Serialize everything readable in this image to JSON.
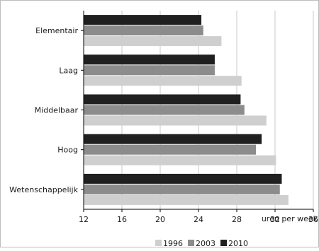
{
  "chart_data": {
    "type": "bar",
    "orientation": "horizontal",
    "categories": [
      "Elementair",
      "Laag",
      "Middelbaar",
      "Hoog",
      "Wetenschappelijk"
    ],
    "series": [
      {
        "name": "2010",
        "values": [
          24.3,
          25.7,
          28.4,
          30.6,
          32.7
        ],
        "color": "#202020"
      },
      {
        "name": "2003",
        "values": [
          24.5,
          25.7,
          28.8,
          30.0,
          32.5
        ],
        "color": "#8c8c8c"
      },
      {
        "name": "1996",
        "values": [
          26.4,
          28.5,
          31.1,
          32.1,
          33.4
        ],
        "color": "#cfcfcf"
      }
    ],
    "xlim": [
      12,
      36
    ],
    "xticks": [
      12,
      16,
      20,
      24,
      28,
      32,
      36
    ],
    "xlabel": "uren per week",
    "legend": {
      "placement": "bottom-right",
      "entries": [
        {
          "label": "1996",
          "color": "#cfcfcf"
        },
        {
          "label": "2003",
          "color": "#8c8c8c"
        },
        {
          "label": "2010",
          "color": "#202020"
        }
      ]
    },
    "grid": "vertical"
  }
}
